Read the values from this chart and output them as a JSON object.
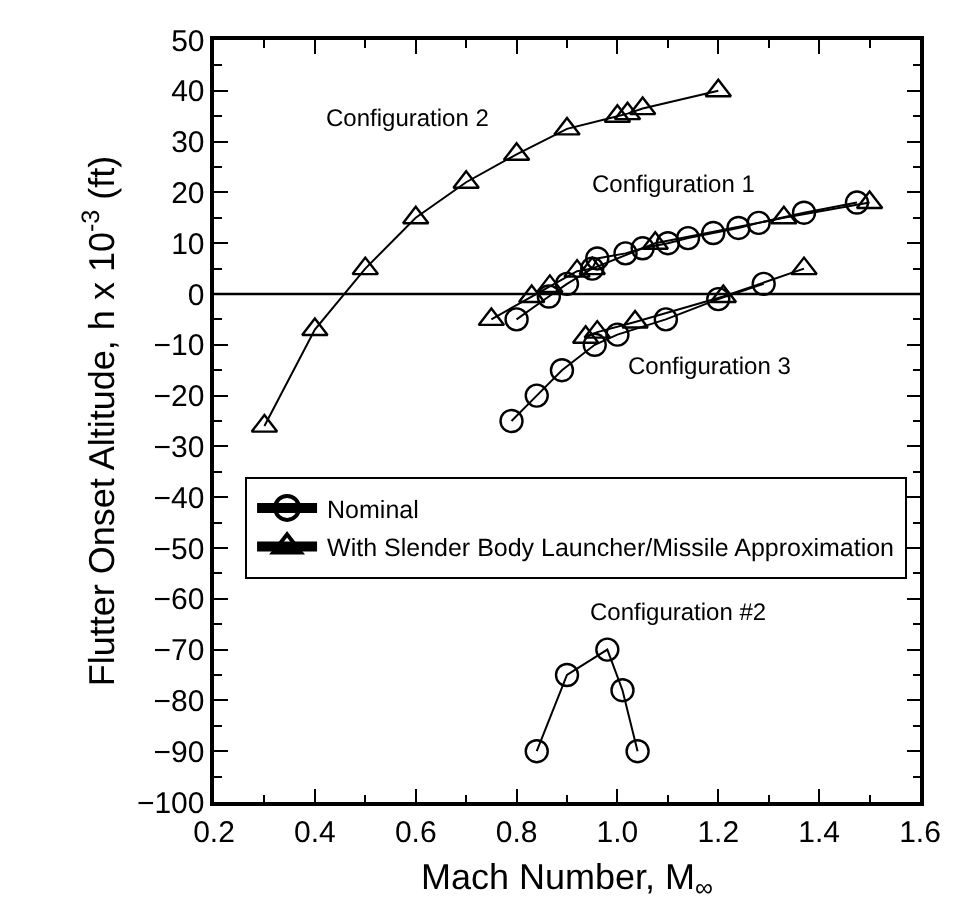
{
  "chart_data": {
    "type": "line",
    "xlabel": "Mach Number, M$_{∞}$",
    "ylabel": "Flutter Onset Altitude, h x 10$^{-3}$ (ft)",
    "xlim": [
      0.2,
      1.6
    ],
    "ylim": [
      -100,
      50
    ],
    "xticks": [
      0.2,
      {
        "value": 0.3,
        "label": null
      },
      0.4,
      {
        "value": 0.5,
        "label": null
      },
      0.6,
      {
        "value": 0.7,
        "label": null
      },
      0.8,
      {
        "value": 0.9,
        "label": null
      },
      {
        "value": 1,
        "label": "1.0"
      },
      {
        "value": 1.1,
        "label": null
      },
      1.2,
      {
        "value": 1.3,
        "label": null
      },
      1.4,
      {
        "value": 1.5,
        "label": null
      },
      1.6
    ],
    "yticks": [
      -100,
      {
        "value": -95,
        "label": null
      },
      -90,
      {
        "value": -85,
        "label": null
      },
      -80,
      {
        "value": -75,
        "label": null
      },
      -70,
      {
        "value": -65,
        "label": null
      },
      -60,
      {
        "value": -55,
        "label": null
      },
      -50,
      {
        "value": -45,
        "label": null
      },
      -40,
      {
        "value": -35,
        "label": null
      },
      -30,
      {
        "value": -25,
        "label": null
      },
      -20,
      {
        "value": -15,
        "label": null
      },
      -10,
      {
        "value": -5,
        "label": null
      },
      0,
      {
        "value": 5,
        "label": null
      },
      10,
      {
        "value": 15,
        "label": null
      },
      20,
      {
        "value": 25,
        "label": null
      },
      30,
      {
        "value": 35,
        "label": null
      },
      40,
      {
        "value": 45,
        "label": null
      },
      50
    ],
    "grid": false,
    "legend": "left",
    "line_style": "solid",
    "series": [
      {
        "name": "Nominal",
        "color": "#000000",
        "marker": "circle",
        "x": [
          0.8,
          0.864,
          0.9,
          0.95,
          0.96,
          1.016,
          1.05,
          1.1,
          1.14,
          1.19,
          1.24,
          1.28,
          1.37,
          1.475
        ],
        "values": [
          -5,
          -0.5,
          2,
          5,
          7,
          8,
          9,
          10,
          11,
          12,
          13,
          14,
          16,
          18
        ]
      },
      {
        "name": "With Slender Body Launcher/Missile Approximation",
        "color": "#000000",
        "marker": "triangle",
        "x": [
          0.3,
          0.4,
          0.5,
          0.6,
          0.7,
          0.8,
          0.9,
          1.0,
          1.02,
          1.05,
          1.2
        ],
        "values": [
          -26,
          -7,
          5,
          15,
          22,
          27.5,
          32.5,
          35,
          35.5,
          36.5,
          40
        ]
      },
      {
        "color": "#000000",
        "marker": "triangle",
        "x": [
          0.75,
          0.83,
          0.866,
          0.92,
          0.95,
          1.075,
          1.33,
          1.5
        ],
        "values": [
          -5,
          -0.5,
          1.5,
          4.5,
          5,
          10,
          15,
          18
        ]
      },
      {
        "color": "#000000",
        "marker": "circle",
        "x": [
          0.79,
          0.84,
          0.89,
          0.955,
          1.0,
          1.096,
          1.2,
          1.29
        ],
        "values": [
          -25,
          -20,
          -15,
          -10,
          -8,
          -5,
          -1,
          2
        ]
      },
      {
        "color": "#000000",
        "marker": "triangle",
        "x": [
          0.937,
          0.96,
          1.035,
          1.21,
          1.37
        ],
        "values": [
          -8.5,
          -7.5,
          -5.5,
          -0.5,
          5
        ]
      },
      {
        "color": "#000000",
        "marker": "circle",
        "x": [
          0.84,
          0.9,
          0.98,
          1.01,
          1.04
        ],
        "values": [
          -90,
          -75,
          -70,
          -78,
          -90
        ]
      }
    ],
    "ref_lines": [
      {
        "axis": "y",
        "value": 0,
        "color": "#000000"
      }
    ],
    "annotations": [
      "Configuration 2",
      "Configuration 1",
      "Configuration 3",
      "Configuration #2"
    ]
  }
}
